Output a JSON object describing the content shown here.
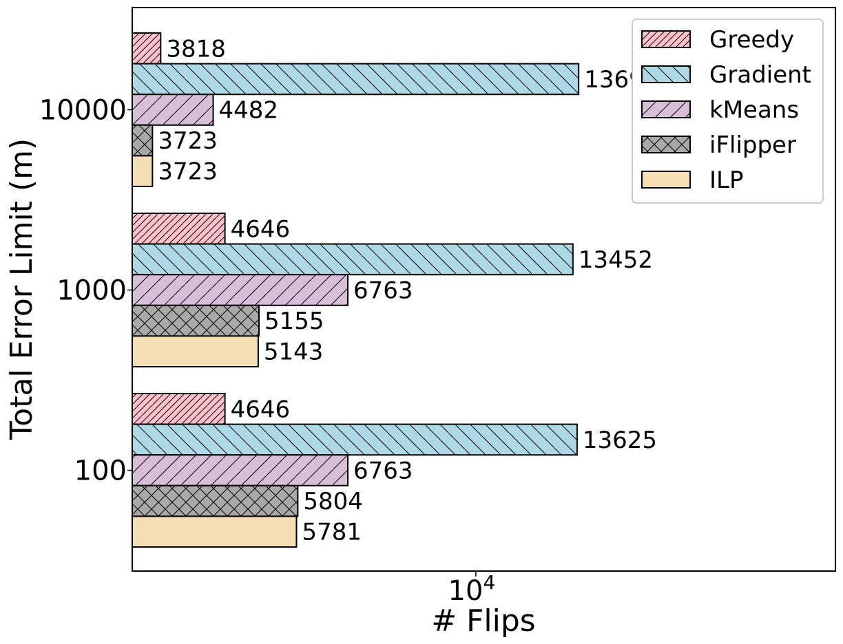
{
  "chart_data": {
    "type": "bar",
    "orientation": "horizontal",
    "title": "",
    "xlabel": "# Flips",
    "ylabel": "Total Error Limit (m)",
    "xscale": "log",
    "xlim": [
      3500,
      30000
    ],
    "xticks": [
      {
        "value": 10000,
        "base": "10",
        "exp": "4"
      }
    ],
    "categories": [
      "10000",
      "1000",
      "100"
    ],
    "series": [
      {
        "name": "Greedy",
        "color": "#ffc0cb",
        "hatch": "diag-up",
        "values": [
          3818,
          4646,
          4646
        ]
      },
      {
        "name": "Gradient",
        "color": "#add8e6",
        "hatch": "diag-down",
        "values": [
          13691,
          13452,
          13625
        ]
      },
      {
        "name": "kMeans",
        "color": "#d8bfd8",
        "hatch": "diag-up-wide",
        "values": [
          4482,
          6763,
          6763
        ]
      },
      {
        "name": "iFlipper",
        "color": "#a9a9a9",
        "hatch": "cross",
        "values": [
          3723,
          5155,
          5804
        ]
      },
      {
        "name": "ILP",
        "color": "#f5deb3",
        "hatch": "none",
        "values": [
          3723,
          5143,
          5781
        ]
      }
    ],
    "legend_position": "top-right",
    "grid": false
  }
}
